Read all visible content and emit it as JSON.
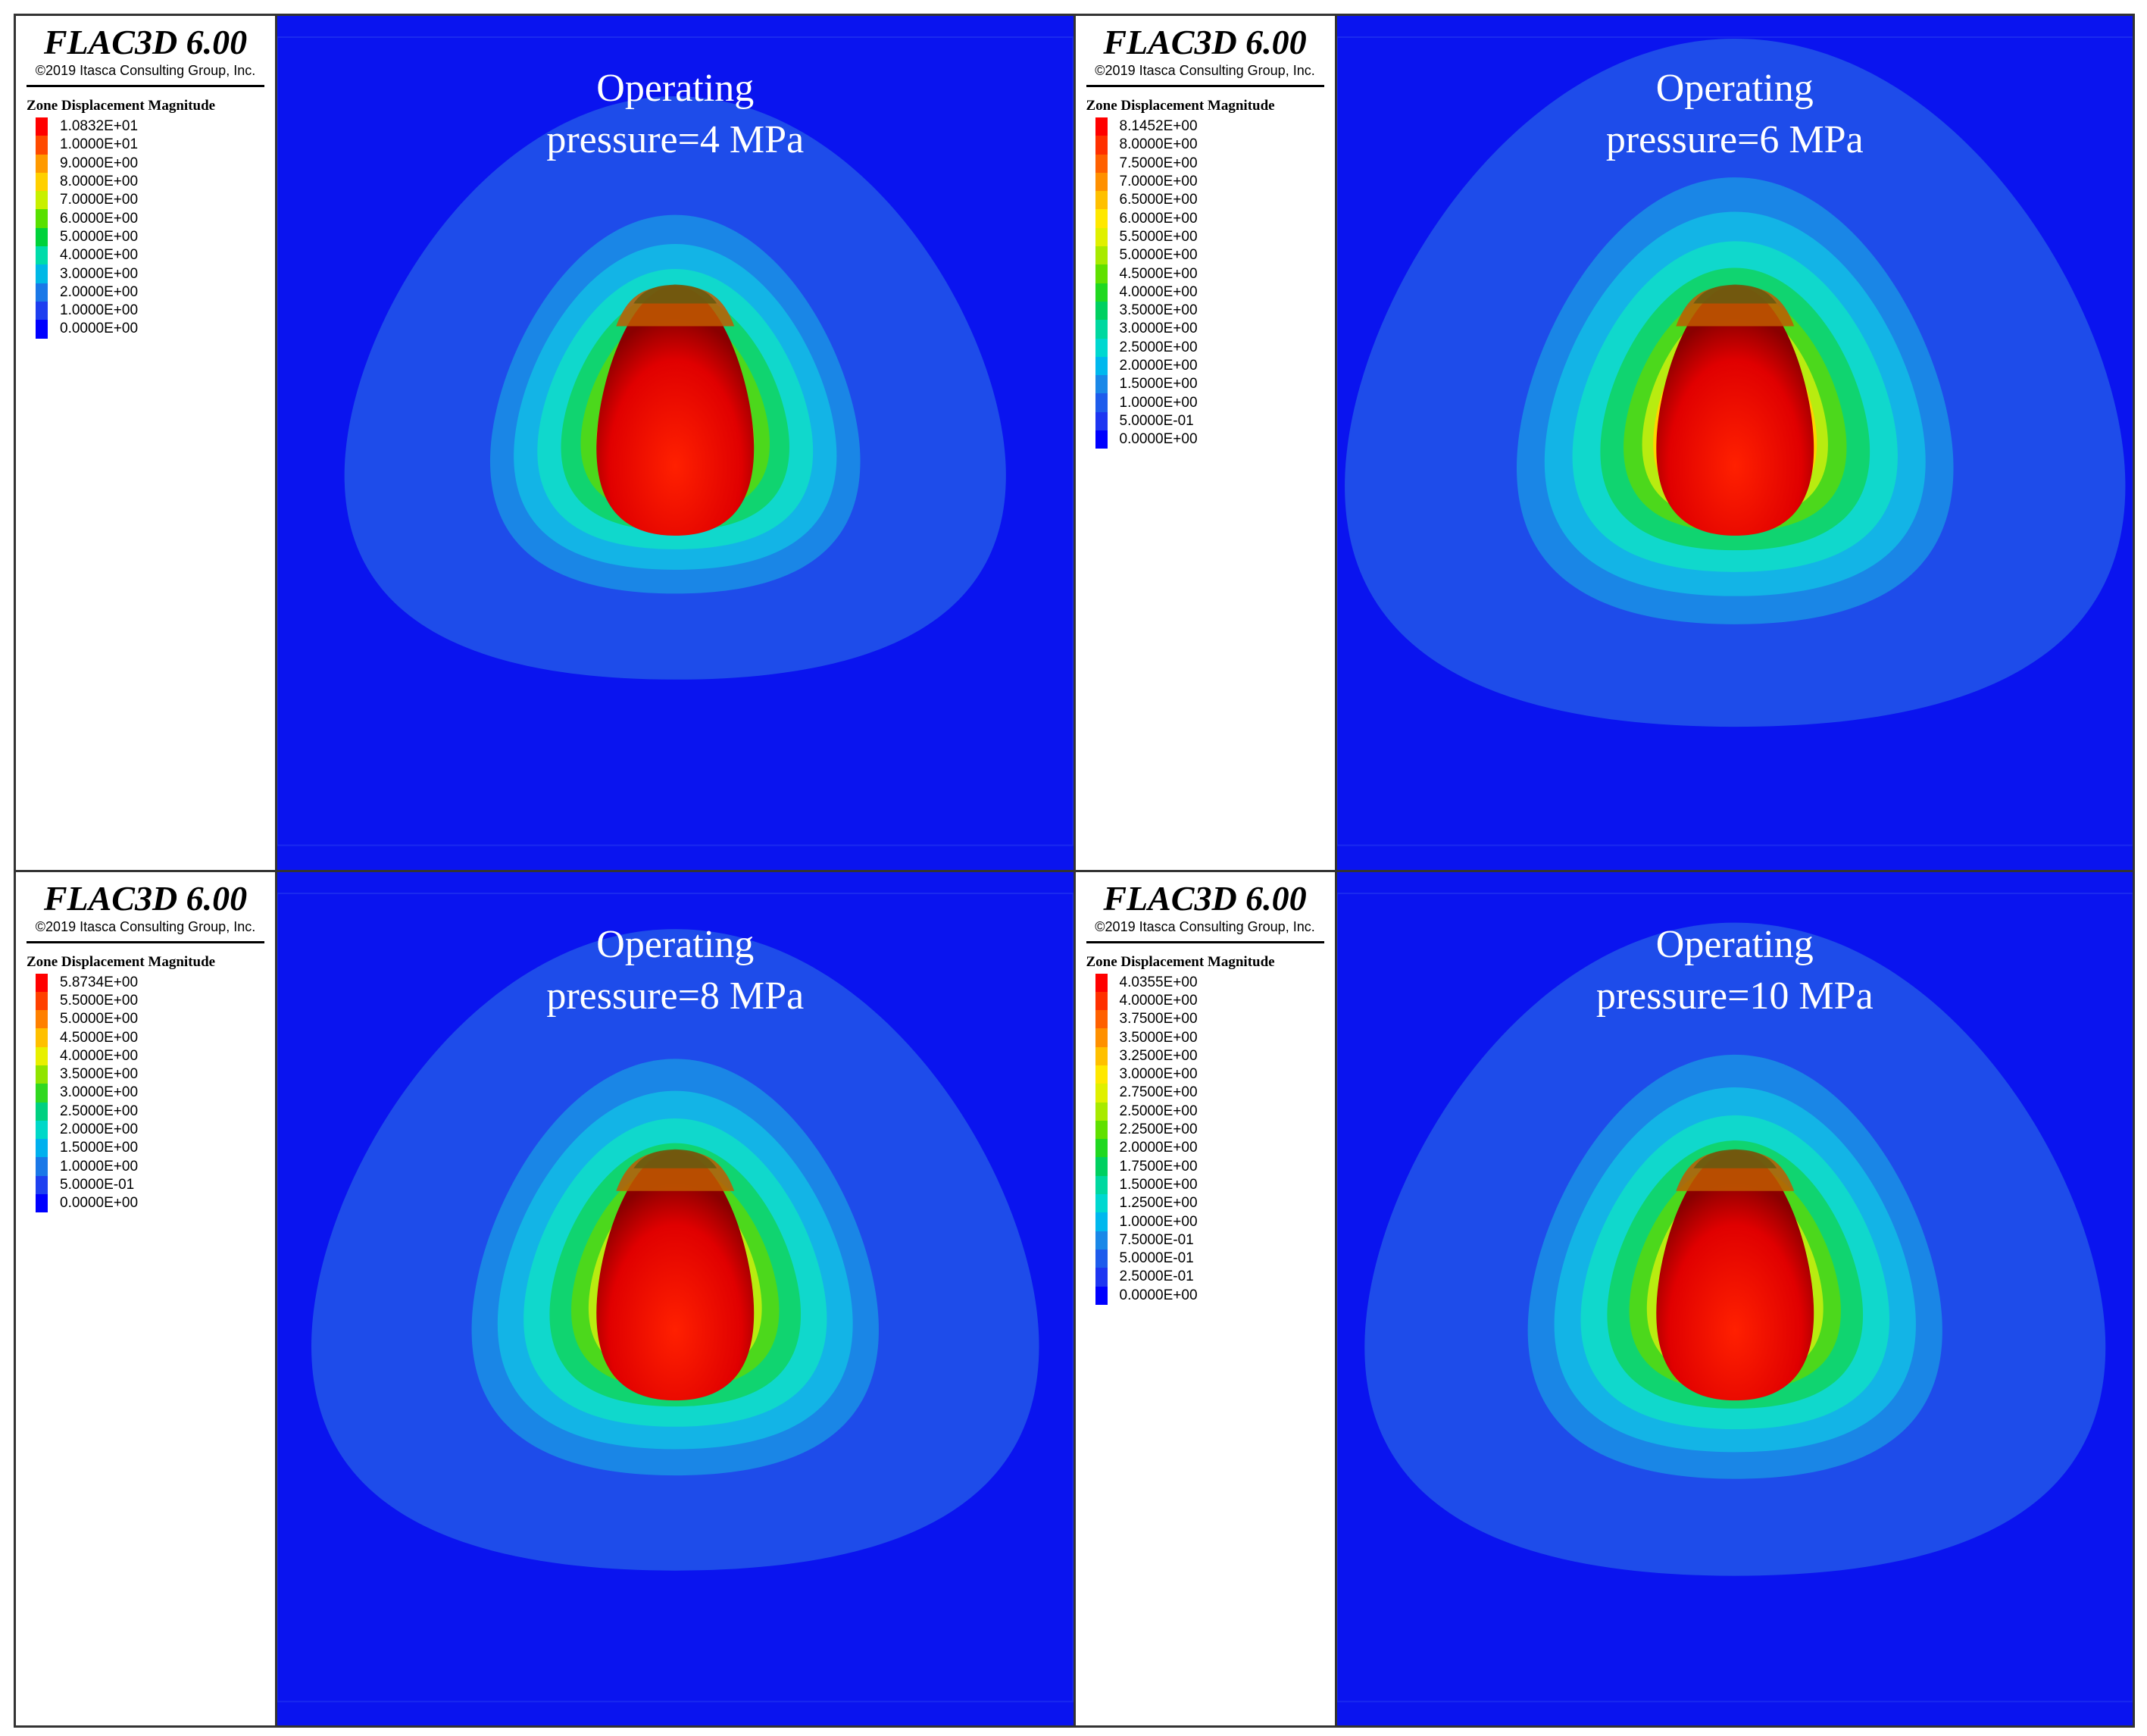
{
  "panels": [
    {
      "brand": "FLAC3D 6.00",
      "copyright": "©2019 Itasca Consulting Group, Inc.",
      "legend_title": "Zone Displacement Magnitude",
      "legend_values": [
        "1.0832E+01",
        "1.0000E+01",
        "9.0000E+00",
        "8.0000E+00",
        "7.0000E+00",
        "6.0000E+00",
        "5.0000E+00",
        "4.0000E+00",
        "3.0000E+00",
        "2.0000E+00",
        "1.0000E+00",
        "0.0000E+00"
      ],
      "legend_colors": [
        "#ff0000",
        "#ff4a00",
        "#ff9a00",
        "#ffd000",
        "#c8f000",
        "#58e000",
        "#00d23a",
        "#00dcaa",
        "#00b8e6",
        "#1a78e8",
        "#1e3ef0",
        "#0000ff"
      ],
      "title_line1": "Operating",
      "title_line2": "pressure=4 MPa",
      "pressure_mpa": 4
    },
    {
      "brand": "FLAC3D 6.00",
      "copyright": "©2019 Itasca Consulting Group, Inc.",
      "legend_title": "Zone Displacement Magnitude",
      "legend_values": [
        "8.1452E+00",
        "8.0000E+00",
        "7.5000E+00",
        "7.0000E+00",
        "6.5000E+00",
        "6.0000E+00",
        "5.5000E+00",
        "5.0000E+00",
        "4.5000E+00",
        "4.0000E+00",
        "3.5000E+00",
        "3.0000E+00",
        "2.5000E+00",
        "2.0000E+00",
        "1.5000E+00",
        "1.0000E+00",
        "5.0000E-01",
        "0.0000E+00"
      ],
      "legend_colors": [
        "#ff0000",
        "#ff3000",
        "#ff6000",
        "#ff9000",
        "#ffc000",
        "#ffe800",
        "#e0f000",
        "#a8ea00",
        "#60e000",
        "#20d820",
        "#00d060",
        "#00d8a0",
        "#00d8d0",
        "#00b8ee",
        "#1a88e8",
        "#1e5cec",
        "#1e36f2",
        "#0000ff"
      ],
      "title_line1": "Operating",
      "title_line2": "pressure=6 MPa",
      "pressure_mpa": 6
    },
    {
      "brand": "FLAC3D 6.00",
      "copyright": "©2019 Itasca Consulting Group, Inc.",
      "legend_title": "Zone Displacement Magnitude",
      "legend_values": [
        "5.8734E+00",
        "5.5000E+00",
        "5.0000E+00",
        "4.5000E+00",
        "4.0000E+00",
        "3.5000E+00",
        "3.0000E+00",
        "2.5000E+00",
        "2.0000E+00",
        "1.5000E+00",
        "1.0000E+00",
        "5.0000E-01",
        "0.0000E+00"
      ],
      "legend_colors": [
        "#ff0000",
        "#ff4000",
        "#ff8000",
        "#ffc000",
        "#e8f000",
        "#90e400",
        "#30d820",
        "#00d080",
        "#00d8c8",
        "#00b0ee",
        "#1a78e8",
        "#1e40f0",
        "#0000ff"
      ],
      "title_line1": "Operating",
      "title_line2": "pressure=8 MPa",
      "pressure_mpa": 8
    },
    {
      "brand": "FLAC3D 6.00",
      "copyright": "©2019 Itasca Consulting Group, Inc.",
      "legend_title": "Zone Displacement Magnitude",
      "legend_values": [
        "4.0355E+00",
        "4.0000E+00",
        "3.7500E+00",
        "3.5000E+00",
        "3.2500E+00",
        "3.0000E+00",
        "2.7500E+00",
        "2.5000E+00",
        "2.2500E+00",
        "2.0000E+00",
        "1.7500E+00",
        "1.5000E+00",
        "1.2500E+00",
        "1.0000E+00",
        "7.5000E-01",
        "5.0000E-01",
        "2.5000E-01",
        "0.0000E+00"
      ],
      "legend_colors": [
        "#ff0000",
        "#ff3000",
        "#ff6000",
        "#ff9000",
        "#ffc000",
        "#ffe800",
        "#e0f000",
        "#a8ea00",
        "#60e000",
        "#20d820",
        "#00d060",
        "#00d8a0",
        "#00d8d0",
        "#00b8ee",
        "#1a88e8",
        "#1e5cec",
        "#1e36f2",
        "#0000ff"
      ],
      "title_line1": "Operating",
      "title_line2": "pressure=10 MPa",
      "pressure_mpa": 10
    }
  ],
  "colors": {
    "background_blue": "#0a14ef",
    "band_outer": "#1e4cea",
    "band_2": "#1a86e6",
    "band_3": "#13b4e6",
    "band_4": "#10d8cc",
    "band_5": "#10d470",
    "band_6": "#4cd81c",
    "band_7": "#b8ec10",
    "band_8": "#ffd400",
    "band_9": "#ff8a00",
    "cavity_red": "#e80000"
  }
}
